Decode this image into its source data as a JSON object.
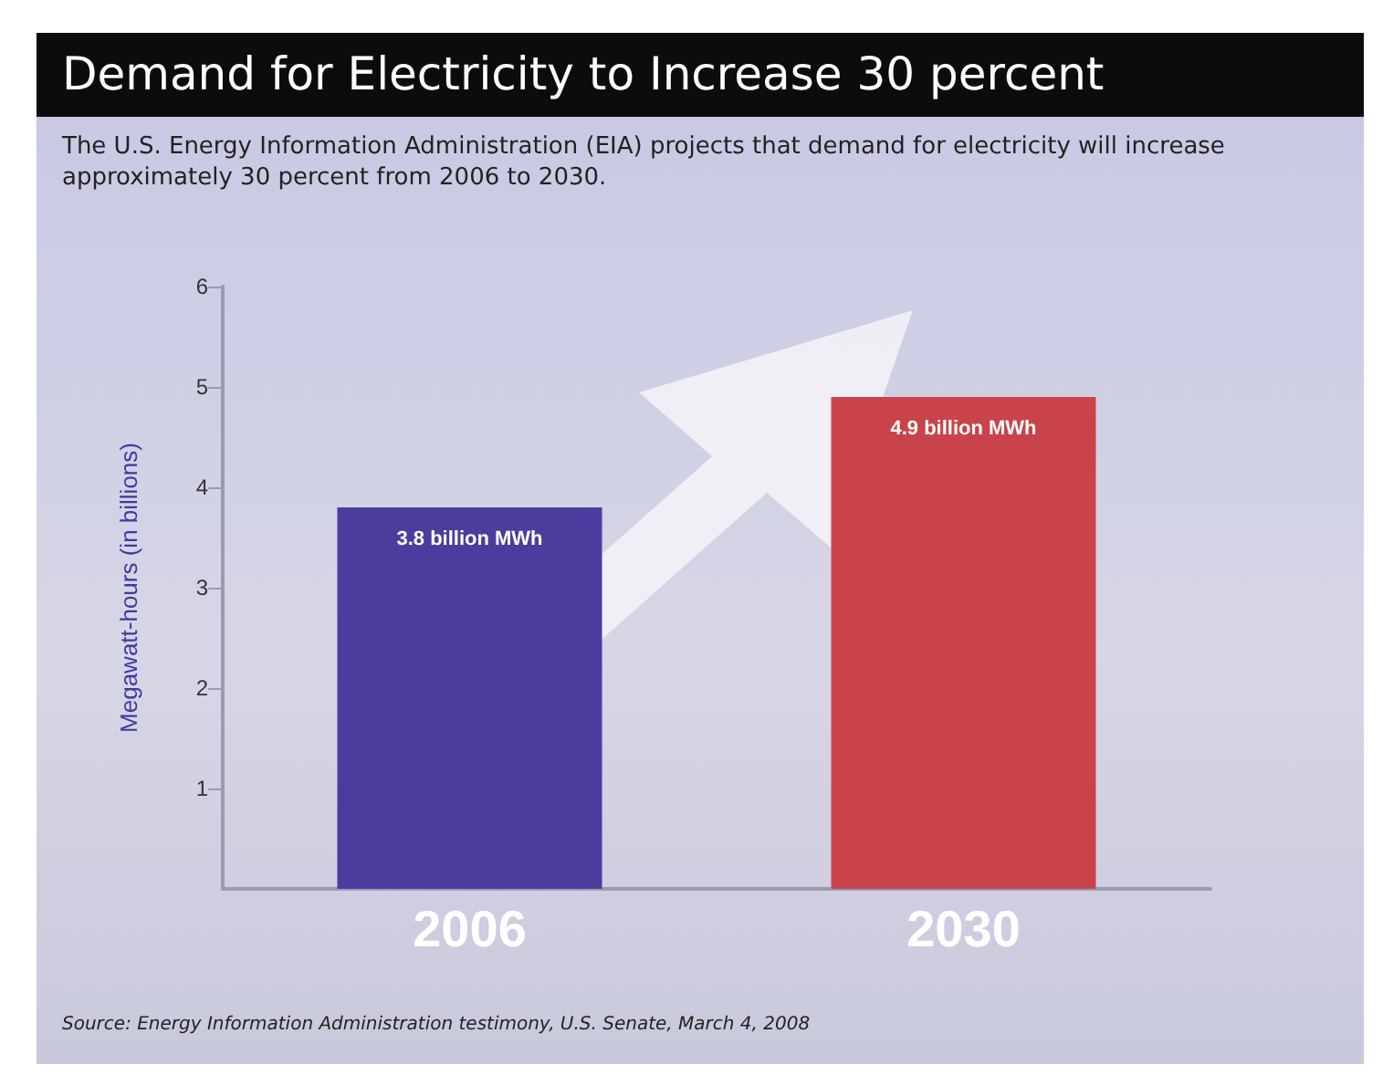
{
  "chart_data": {
    "type": "bar",
    "title": "Demand for Electricity to Increase 30 percent",
    "subtitle": "The U.S. Energy Information Administration (EIA) projects that demand for electricity will increase approximately 30 percent from 2006 to 2030.",
    "ylabel": "Megawatt-hours (in billions)",
    "categories": [
      "2006",
      "2030"
    ],
    "values": [
      3.8,
      4.9
    ],
    "colors": [
      "#4a3d9e",
      "#c9434b"
    ],
    "value_labels": [
      "3.8 billion MWh",
      "4.9 billion MWh"
    ],
    "ylim": [
      0,
      6
    ],
    "yticks": [
      1,
      2,
      3,
      4,
      5,
      6
    ],
    "annotations": [
      "Source: Energy Information Administration testimony, U.S. Senate, March 4, 2008"
    ]
  }
}
